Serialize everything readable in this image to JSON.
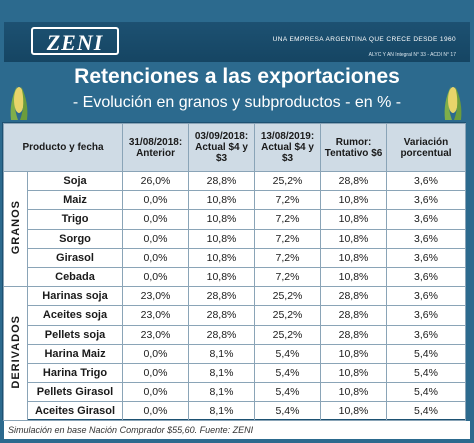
{
  "brand": {
    "logo": "ZENI",
    "tagline": "UNA EMPRESA ARGENTINA QUE CRECE DESDE 1960",
    "legal": "ALYC Y AN Integral N° 33 - ACDI N° 17"
  },
  "title": "Retenciones a las exportaciones",
  "subtitle": "- Evolución en granos y subproductos - en % -",
  "icons": [
    "corn-icon"
  ],
  "table": {
    "headers": {
      "product": "Producto y fecha",
      "c1": "31/08/2018: Anterior",
      "c2": "03/09/2018: Actual $4 y $3",
      "c3": "13/08/2019: Actual $4 y $3",
      "c4": "Rumor: Tentativo $6",
      "c5": "Variación porcentual"
    },
    "groups": [
      {
        "label": "GRANOS",
        "rows": [
          {
            "product": "Soja",
            "c1": "26,0%",
            "c2": "28,8%",
            "c3": "25,2%",
            "c4": "28,8%",
            "c5": "3,6%"
          },
          {
            "product": "Maiz",
            "c1": "0,0%",
            "c2": "10,8%",
            "c3": "7,2%",
            "c4": "10,8%",
            "c5": "3,6%"
          },
          {
            "product": "Trigo",
            "c1": "0,0%",
            "c2": "10,8%",
            "c3": "7,2%",
            "c4": "10,8%",
            "c5": "3,6%"
          },
          {
            "product": "Sorgo",
            "c1": "0,0%",
            "c2": "10,8%",
            "c3": "7,2%",
            "c4": "10,8%",
            "c5": "3,6%"
          },
          {
            "product": "Girasol",
            "c1": "0,0%",
            "c2": "10,8%",
            "c3": "7,2%",
            "c4": "10,8%",
            "c5": "3,6%"
          },
          {
            "product": "Cebada",
            "c1": "0,0%",
            "c2": "10,8%",
            "c3": "7,2%",
            "c4": "10,8%",
            "c5": "3,6%"
          }
        ]
      },
      {
        "label": "DERIVADOS",
        "rows": [
          {
            "product": "Harinas soja",
            "c1": "23,0%",
            "c2": "28,8%",
            "c3": "25,2%",
            "c4": "28,8%",
            "c5": "3,6%"
          },
          {
            "product": "Aceites soja",
            "c1": "23,0%",
            "c2": "28,8%",
            "c3": "25,2%",
            "c4": "28,8%",
            "c5": "3,6%"
          },
          {
            "product": "Pellets soja",
            "c1": "23,0%",
            "c2": "28,8%",
            "c3": "25,2%",
            "c4": "28,8%",
            "c5": "3,6%"
          },
          {
            "product": "Harina Maiz",
            "c1": "0,0%",
            "c2": "8,1%",
            "c3": "5,4%",
            "c4": "10,8%",
            "c5": "5,4%"
          },
          {
            "product": "Harina Trigo",
            "c1": "0,0%",
            "c2": "8,1%",
            "c3": "5,4%",
            "c4": "10,8%",
            "c5": "5,4%"
          },
          {
            "product": "Pellets Girasol",
            "c1": "0,0%",
            "c2": "8,1%",
            "c3": "5,4%",
            "c4": "10,8%",
            "c5": "5,4%"
          },
          {
            "product": "Aceites Girasol",
            "c1": "0,0%",
            "c2": "8,1%",
            "c3": "5,4%",
            "c4": "10,8%",
            "c5": "5,4%"
          }
        ]
      }
    ]
  },
  "footnote": "Simulación en base Nación Comprador $55,60. Fuente: ZENI"
}
